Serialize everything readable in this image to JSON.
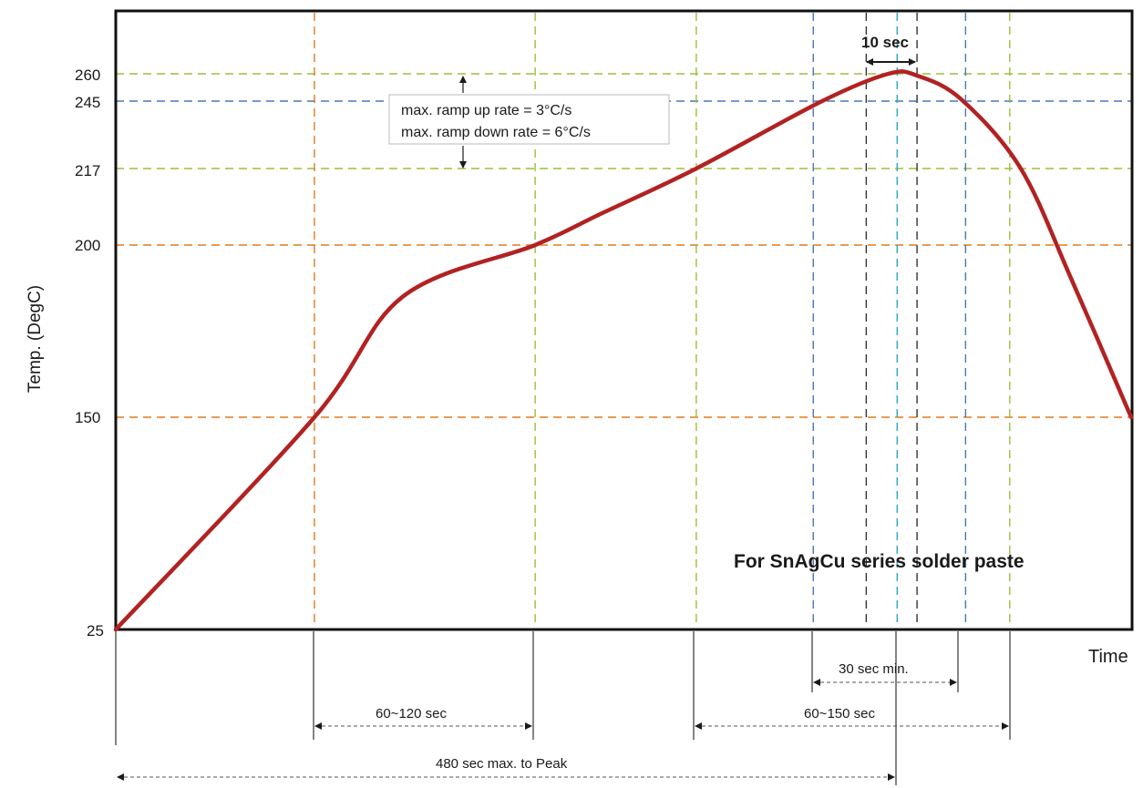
{
  "chart_data": {
    "type": "line",
    "title": "",
    "xlabel": "Time",
    "ylabel": "Temp. (DegC)",
    "y_ticks": [
      "25",
      "150",
      "200",
      "217",
      "245",
      "260"
    ],
    "series": [
      {
        "name": "",
        "points": [
          {
            "t": 0,
            "temp": 25
          },
          {
            "t": 90,
            "temp": 150
          },
          {
            "t": 130,
            "temp": 185
          },
          {
            "t": 190,
            "temp": 200
          },
          {
            "t": 220,
            "temp": 207
          },
          {
            "t": 263,
            "temp": 217
          },
          {
            "t": 320,
            "temp": 245
          },
          {
            "t": 350,
            "temp": 260
          },
          {
            "t": 363,
            "temp": 259
          },
          {
            "t": 383,
            "temp": 246
          },
          {
            "t": 410,
            "temp": 217
          },
          {
            "t": 433,
            "temp": 190
          },
          {
            "t": 460,
            "temp": 150
          }
        ]
      }
    ],
    "grid": true,
    "annotations": {
      "ramp_up": "max. ramp up rate = 3°C/s",
      "ramp_down": "max. ramp down rate = 6°C/s",
      "peak_window": "10 sec",
      "paste": "For SnAgCu series solder paste",
      "above_217": "30 sec min.",
      "preheat": "60~120 sec",
      "above_200": "60~150 sec",
      "to_peak": "480 sec max. to Peak"
    },
    "colors": {
      "curve": "#b22222",
      "grid_orange": "#e07a1f",
      "grid_green": "#9bbf3a",
      "grid_blue": "#4a76b8",
      "grid_cyan": "#2aa8c8",
      "frame": "#111111"
    }
  }
}
